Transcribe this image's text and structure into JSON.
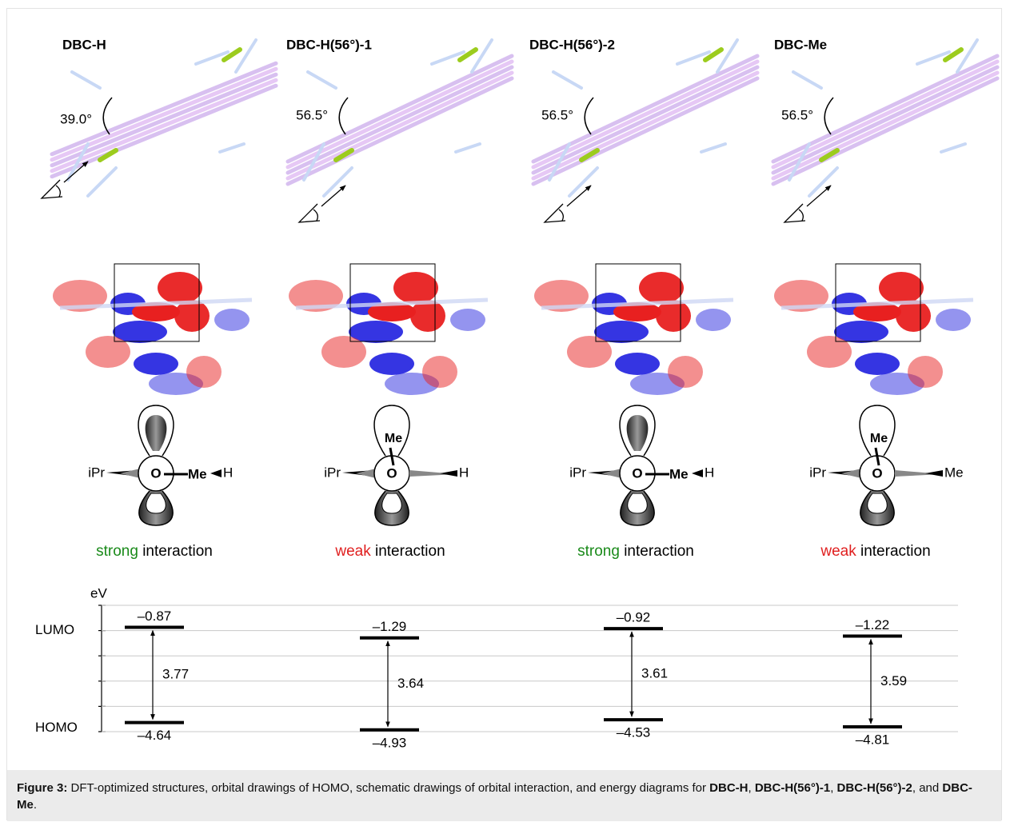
{
  "panels": [
    {
      "label": "DBC-H",
      "angle": "39.0°",
      "me_position": "right",
      "schematic": {
        "left": "iPr",
        "center": "O",
        "me": "Me",
        "right": "H"
      },
      "interaction": {
        "strength": "strong",
        "color": "#1a8a1a",
        "text": "interaction"
      }
    },
    {
      "label": "DBC-H(56°)-1",
      "angle": "56.5°",
      "me_position": "top",
      "schematic": {
        "left": "iPr",
        "center": "O",
        "me": "Me",
        "right": "H"
      },
      "interaction": {
        "strength": "weak",
        "color": "#e02020",
        "text": "interaction"
      }
    },
    {
      "label": "DBC-H(56°)-2",
      "angle": "56.5°",
      "me_position": "right",
      "schematic": {
        "left": "iPr",
        "center": "O",
        "me": "Me",
        "right": "H"
      },
      "interaction": {
        "strength": "strong",
        "color": "#1a8a1a",
        "text": "interaction"
      }
    },
    {
      "label": "DBC-Me",
      "angle": "56.5°",
      "me_position": "top",
      "schematic": {
        "left": "iPr",
        "center": "O",
        "me": "Me",
        "right": "Me"
      },
      "interaction": {
        "strength": "weak",
        "color": "#e02020",
        "text": "interaction"
      }
    }
  ],
  "energy_diagram": {
    "unit": "eV",
    "lumo_label": "LUMO",
    "homo_label": "HOMO",
    "lumo": [
      -0.87,
      -1.29,
      -0.92,
      -1.22
    ],
    "lumo_labels": [
      "–0.87",
      "–1.29",
      "–0.92",
      "–1.22"
    ],
    "homo": [
      -4.64,
      -4.93,
      -4.53,
      -4.81
    ],
    "homo_labels": [
      "–4.64",
      "–4.93",
      "–4.53",
      "–4.81"
    ],
    "gaps": [
      3.77,
      3.64,
      3.61,
      3.59
    ],
    "ylim": [
      -5,
      0
    ],
    "yticks": [
      0,
      -1,
      -2,
      -3,
      -4,
      -5
    ],
    "grid": true
  },
  "caption": {
    "segments": [
      {
        "text": "Figure 3:",
        "bold": true
      },
      {
        "text": " DFT-optimized structures, orbital drawings of HOMO, schematic drawings of orbital interaction, and energy diagrams for ",
        "bold": false
      },
      {
        "text": "DBC-H",
        "bold": true
      },
      {
        "text": ", ",
        "bold": false
      },
      {
        "text": "DBC-H(56°)-1",
        "bold": true
      },
      {
        "text": ", ",
        "bold": false
      },
      {
        "text": "DBC-H(56°)-2",
        "bold": true
      },
      {
        "text": ", and ",
        "bold": false
      },
      {
        "text": "DBC-Me",
        "bold": true
      },
      {
        "text": ".",
        "bold": false
      }
    ]
  }
}
